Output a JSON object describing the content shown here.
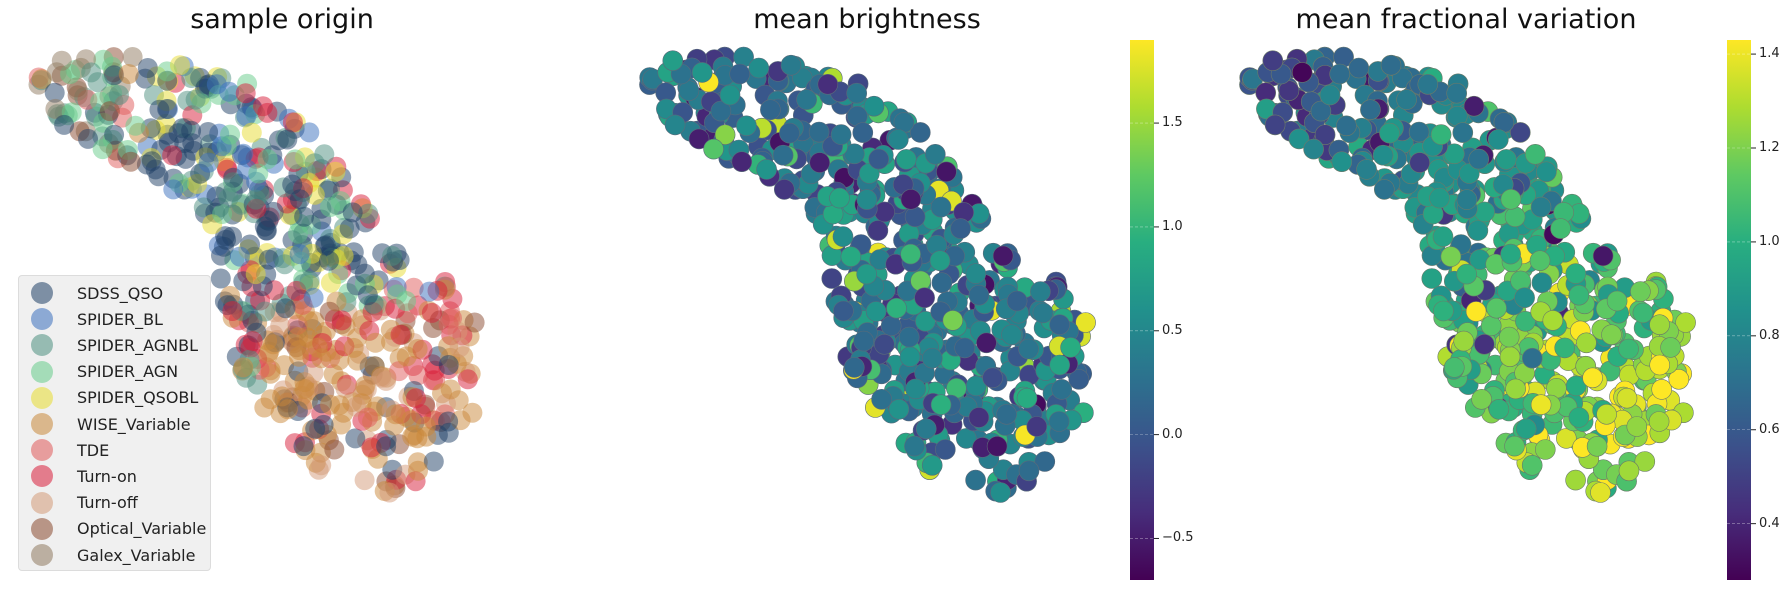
{
  "chart_data": [
    {
      "type": "scatter",
      "title": "sample origin",
      "xlabel": "",
      "ylabel": "",
      "grid": false,
      "legend_position": "lower-left",
      "legend": [
        {
          "label": "SDSS_QSO",
          "color": "#1f3f66"
        },
        {
          "label": "SPIDER_BL",
          "color": "#3a6fbd"
        },
        {
          "label": "SPIDER_AGNBL",
          "color": "#4d8f80"
        },
        {
          "label": "SPIDER_AGN",
          "color": "#66cc8a"
        },
        {
          "label": "SPIDER_QSOBL",
          "color": "#e8dc30"
        },
        {
          "label": "WISE_Variable",
          "color": "#c9883a"
        },
        {
          "label": "TDE",
          "color": "#e05a5a"
        },
        {
          "label": "Turn-on",
          "color": "#d81e3a"
        },
        {
          "label": "Turn-off",
          "color": "#d49a78"
        },
        {
          "label": "Optical_Variable",
          "color": "#8a4a30"
        },
        {
          "label": "Galex_Variable",
          "color": "#8f7a60"
        }
      ]
    },
    {
      "type": "scatter",
      "title": "mean brightness",
      "xlabel": "",
      "ylabel": "",
      "grid": false,
      "colormap": "viridis",
      "colorbar": {
        "range": [
          -0.7,
          1.9
        ],
        "ticks": [
          -0.5,
          0.0,
          0.5,
          1.0,
          1.5
        ],
        "tick_labels": [
          "−0.5",
          "0.0",
          "0.5",
          "1.0",
          "1.5"
        ]
      }
    },
    {
      "type": "scatter",
      "title": "mean fractional variation",
      "xlabel": "",
      "ylabel": "",
      "grid": false,
      "colormap": "viridis",
      "colorbar": {
        "range": [
          0.28,
          1.43
        ],
        "ticks": [
          0.4,
          0.6,
          0.8,
          1.0,
          1.2,
          1.4
        ],
        "tick_labels": [
          "0.4",
          "0.6",
          "0.8",
          "1.0",
          "1.2",
          "1.4"
        ]
      }
    }
  ]
}
